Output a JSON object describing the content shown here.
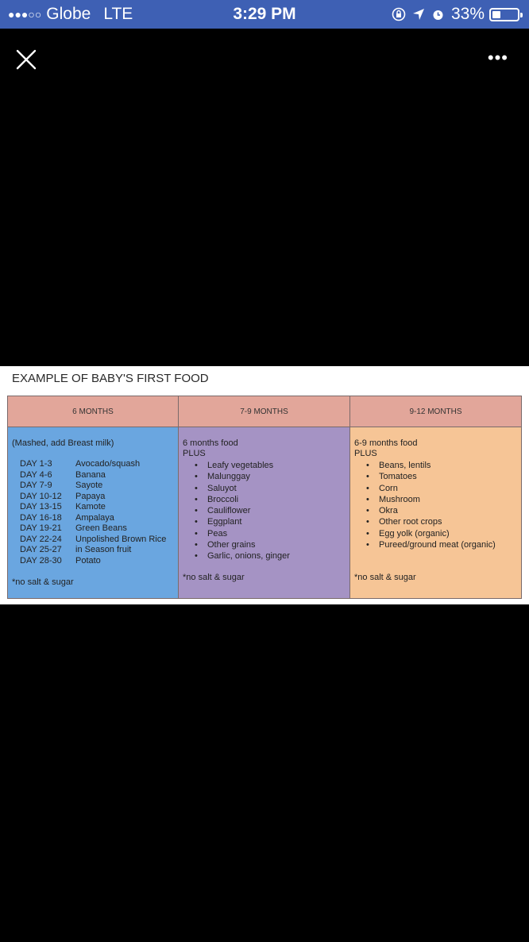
{
  "status_bar": {
    "carrier": "Globe",
    "network": "LTE",
    "time": "3:29 PM",
    "battery": "33%",
    "battery_level": 0.33
  },
  "viewer": {
    "close_icon": "close-icon",
    "more_label": "•••"
  },
  "photo": {
    "title": "EXAMPLE OF BABY'S FIRST FOOD",
    "columns": [
      {
        "header": "6 MONTHS",
        "intro": "(Mashed, add Breast milk)",
        "days": [
          {
            "day": "DAY 1-3",
            "food": "Avocado/squash"
          },
          {
            "day": "DAY 4-6",
            "food": "Banana"
          },
          {
            "day": "DAY 7-9",
            "food": "Sayote"
          },
          {
            "day": "DAY 10-12",
            "food": "Papaya"
          },
          {
            "day": "DAY 13-15",
            "food": "Kamote"
          },
          {
            "day": "DAY 16-18",
            "food": "Ampalaya"
          },
          {
            "day": "DAY 19-21",
            "food": "Green Beans"
          },
          {
            "day": "DAY 22-24",
            "food": "Unpolished Brown Rice"
          },
          {
            "day": "DAY 25-27",
            "food": "in Season fruit"
          },
          {
            "day": "DAY 28-30",
            "food": "Potato"
          }
        ],
        "note": "*no salt & sugar"
      },
      {
        "header": "7-9 MONTHS",
        "line1": "6 months food",
        "line2": "PLUS",
        "items": [
          "Leafy vegetables",
          "Malunggay",
          "Saluyot",
          "Broccoli",
          "Cauliflower",
          "Eggplant",
          "Peas",
          "Other grains",
          "Garlic, onions, ginger"
        ],
        "note": "*no salt & sugar"
      },
      {
        "header": "9-12 MONTHS",
        "line1": "6-9 months food",
        "line2": "PLUS",
        "items": [
          "Beans, lentils",
          "Tomatoes",
          "Corn",
          "Mushroom",
          "Okra",
          "Other root crops",
          "Egg yolk (organic)",
          "Pureed/ground meat (organic)"
        ],
        "note": "*no salt & sugar"
      }
    ]
  }
}
